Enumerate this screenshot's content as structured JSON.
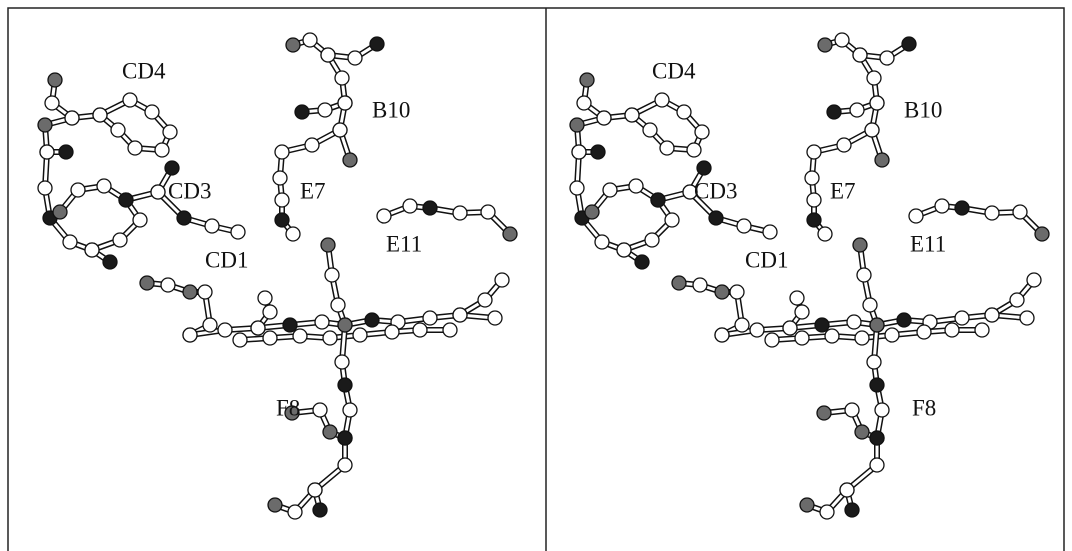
{
  "panels": [
    {
      "labels": [
        "CD4",
        "B10",
        "CD3",
        "E7",
        "E11",
        "CD1",
        "F8"
      ]
    },
    {
      "labels": [
        "CD4",
        "B10",
        "CD3",
        "E7",
        "E11",
        "CD1",
        "F8"
      ]
    }
  ]
}
